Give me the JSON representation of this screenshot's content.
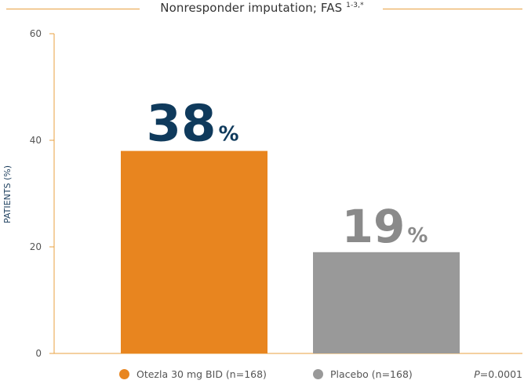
{
  "heading": {
    "text": "Nonresponder imputation; FAS",
    "superscript": "1-3,*"
  },
  "legend": {
    "items": [
      {
        "label": "Otezla 30 mg BID (n=168)",
        "color": "#e8851f"
      },
      {
        "label": "Placebo (n=168)",
        "color": "#999999"
      }
    ]
  },
  "stats": {
    "p_symbol": "P",
    "p_value": "=0.0001"
  },
  "chart_data": {
    "type": "bar",
    "categories": [
      "Otezla 30 mg BID (n=168)",
      "Placebo (n=168)"
    ],
    "values": [
      38,
      19
    ],
    "value_labels": [
      "38",
      "19"
    ],
    "value_suffix": "%",
    "colors": [
      "#e8851f",
      "#999999"
    ],
    "label_colors": [
      "#0f3a5c",
      "#8a8a8a"
    ],
    "ylabel": "PATIENTS (%)",
    "ylim": [
      0,
      60
    ],
    "yticks": [
      0,
      20,
      40,
      60
    ],
    "grid": false,
    "legend_position": "bottom"
  }
}
